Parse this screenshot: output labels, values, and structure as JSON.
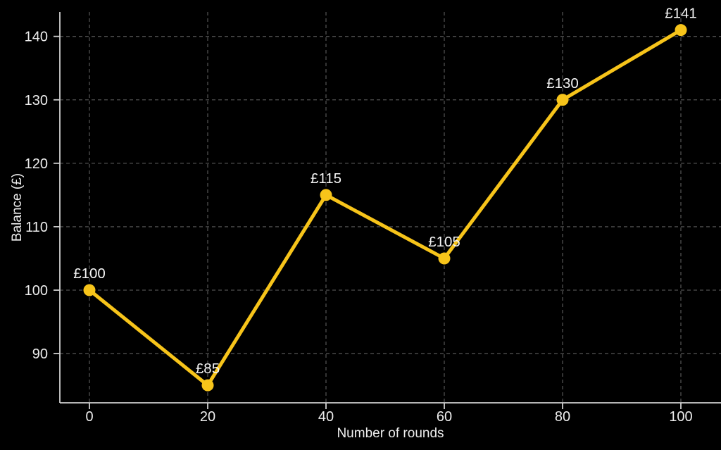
{
  "chart_data": {
    "type": "line",
    "title": "",
    "xlabel": "Number of rounds",
    "ylabel": "Balance (£)",
    "x": [
      0,
      20,
      40,
      60,
      80,
      100
    ],
    "y": [
      100,
      85,
      115,
      105,
      130,
      141
    ],
    "series": [
      {
        "name": "balance",
        "x": [
          0,
          20,
          40,
          60,
          80,
          100
        ],
        "values": [
          100,
          85,
          115,
          105,
          130,
          141
        ],
        "point_labels": [
          "£100",
          "£85",
          "£115",
          "£105",
          "£130",
          "£141"
        ]
      }
    ],
    "x_ticks": [
      0,
      20,
      40,
      60,
      80,
      100
    ],
    "y_ticks": [
      90,
      100,
      110,
      120,
      130,
      140
    ],
    "xlim": [
      -5,
      106
    ],
    "ylim": [
      82,
      144
    ],
    "grid": true,
    "grid_style": "dashed",
    "legend": "none",
    "colors": {
      "background": "#000000",
      "line": "#F7C41A",
      "marker": "#F7C41A",
      "grid": "#4f4f4f",
      "axis": "#cfcfcf",
      "tick_text": "#ededed",
      "label_text": "#f5f5f5"
    }
  }
}
